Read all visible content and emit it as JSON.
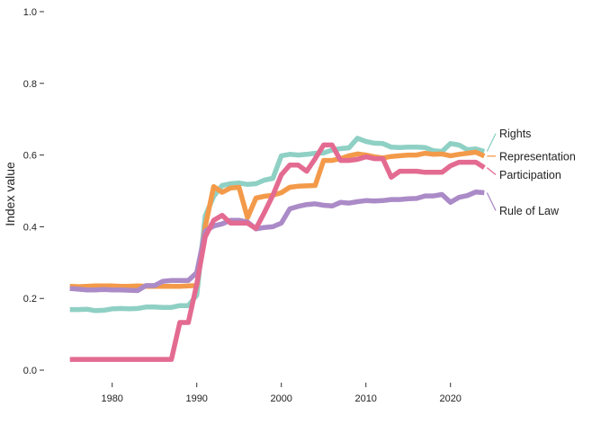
{
  "chart_data": {
    "type": "line",
    "ylabel": "Index value",
    "xlabel": "",
    "title": "",
    "xlim": [
      1974.5,
      2024.5
    ],
    "ylim": [
      -0.05,
      1.02
    ],
    "xticks": [
      1980,
      1990,
      2000,
      2010,
      2020
    ],
    "xtick_labels": [
      "1980",
      "1990",
      "2000",
      "2010",
      "2020"
    ],
    "yticks": [
      0.0,
      0.2,
      0.4,
      0.6,
      0.8,
      1.0
    ],
    "ytick_labels": [
      "0.0",
      "0.2",
      "0.4",
      "0.6",
      "0.8",
      "1.0"
    ],
    "grid": false,
    "legend": "direct labels at right end of lines",
    "series": [
      {
        "name": "Rights",
        "color": "#8fd0c4",
        "label_offset": 0.05,
        "points": [
          [
            1975,
            0.169
          ],
          [
            1976,
            0.169
          ],
          [
            1977,
            0.17
          ],
          [
            1978,
            0.166
          ],
          [
            1979,
            0.167
          ],
          [
            1980,
            0.171
          ],
          [
            1981,
            0.172
          ],
          [
            1982,
            0.171
          ],
          [
            1983,
            0.172
          ],
          [
            1984,
            0.176
          ],
          [
            1985,
            0.176
          ],
          [
            1986,
            0.175
          ],
          [
            1987,
            0.175
          ],
          [
            1988,
            0.18
          ],
          [
            1989,
            0.18
          ],
          [
            1990,
            0.209
          ],
          [
            1991,
            0.43
          ],
          [
            1992,
            0.485
          ],
          [
            1993,
            0.515
          ],
          [
            1994,
            0.52
          ],
          [
            1995,
            0.522
          ],
          [
            1996,
            0.518
          ],
          [
            1997,
            0.52
          ],
          [
            1998,
            0.53
          ],
          [
            1999,
            0.535
          ],
          [
            2000,
            0.598
          ],
          [
            2001,
            0.602
          ],
          [
            2002,
            0.6
          ],
          [
            2003,
            0.602
          ],
          [
            2004,
            0.605
          ],
          [
            2005,
            0.606
          ],
          [
            2006,
            0.614
          ],
          [
            2007,
            0.618
          ],
          [
            2008,
            0.62
          ],
          [
            2009,
            0.647
          ],
          [
            2010,
            0.638
          ],
          [
            2011,
            0.633
          ],
          [
            2012,
            0.632
          ],
          [
            2013,
            0.622
          ],
          [
            2014,
            0.621
          ],
          [
            2015,
            0.622
          ],
          [
            2016,
            0.622
          ],
          [
            2017,
            0.621
          ],
          [
            2018,
            0.612
          ],
          [
            2019,
            0.61
          ],
          [
            2020,
            0.632
          ],
          [
            2021,
            0.628
          ],
          [
            2022,
            0.615
          ],
          [
            2023,
            0.617
          ],
          [
            2024,
            0.61
          ]
        ]
      },
      {
        "name": "Representation",
        "color": "#f39a4a",
        "label_offset": 0.0,
        "points": [
          [
            1975,
            0.234
          ],
          [
            1976,
            0.233
          ],
          [
            1977,
            0.234
          ],
          [
            1978,
            0.235
          ],
          [
            1979,
            0.235
          ],
          [
            1980,
            0.235
          ],
          [
            1981,
            0.234
          ],
          [
            1982,
            0.234
          ],
          [
            1983,
            0.235
          ],
          [
            1984,
            0.234
          ],
          [
            1985,
            0.234
          ],
          [
            1986,
            0.234
          ],
          [
            1987,
            0.234
          ],
          [
            1988,
            0.234
          ],
          [
            1989,
            0.235
          ],
          [
            1990,
            0.236
          ],
          [
            1991,
            0.4
          ],
          [
            1992,
            0.512
          ],
          [
            1993,
            0.496
          ],
          [
            1994,
            0.508
          ],
          [
            1995,
            0.51
          ],
          [
            1996,
            0.425
          ],
          [
            1997,
            0.48
          ],
          [
            1998,
            0.485
          ],
          [
            1999,
            0.488
          ],
          [
            2000,
            0.495
          ],
          [
            2001,
            0.51
          ],
          [
            2002,
            0.513
          ],
          [
            2003,
            0.514
          ],
          [
            2004,
            0.515
          ],
          [
            2005,
            0.585
          ],
          [
            2006,
            0.585
          ],
          [
            2007,
            0.59
          ],
          [
            2008,
            0.598
          ],
          [
            2009,
            0.603
          ],
          [
            2010,
            0.6
          ],
          [
            2011,
            0.595
          ],
          [
            2012,
            0.592
          ],
          [
            2013,
            0.596
          ],
          [
            2014,
            0.598
          ],
          [
            2015,
            0.6
          ],
          [
            2016,
            0.6
          ],
          [
            2017,
            0.605
          ],
          [
            2018,
            0.602
          ],
          [
            2019,
            0.603
          ],
          [
            2020,
            0.598
          ],
          [
            2021,
            0.602
          ],
          [
            2022,
            0.605
          ],
          [
            2023,
            0.608
          ],
          [
            2024,
            0.597
          ]
        ]
      },
      {
        "name": "Participation",
        "color": "#e36b91",
        "label_offset": -0.02,
        "points": [
          [
            1975,
            0.03
          ],
          [
            1976,
            0.03
          ],
          [
            1977,
            0.03
          ],
          [
            1978,
            0.03
          ],
          [
            1979,
            0.03
          ],
          [
            1980,
            0.03
          ],
          [
            1981,
            0.03
          ],
          [
            1982,
            0.03
          ],
          [
            1983,
            0.03
          ],
          [
            1984,
            0.03
          ],
          [
            1985,
            0.03
          ],
          [
            1986,
            0.03
          ],
          [
            1987,
            0.03
          ],
          [
            1988,
            0.133
          ],
          [
            1989,
            0.133
          ],
          [
            1990,
            0.24
          ],
          [
            1991,
            0.372
          ],
          [
            1992,
            0.418
          ],
          [
            1993,
            0.432
          ],
          [
            1994,
            0.41
          ],
          [
            1995,
            0.41
          ],
          [
            1996,
            0.41
          ],
          [
            1997,
            0.395
          ],
          [
            1998,
            0.44
          ],
          [
            1999,
            0.488
          ],
          [
            2000,
            0.545
          ],
          [
            2001,
            0.572
          ],
          [
            2002,
            0.572
          ],
          [
            2003,
            0.555
          ],
          [
            2004,
            0.59
          ],
          [
            2005,
            0.628
          ],
          [
            2006,
            0.628
          ],
          [
            2007,
            0.585
          ],
          [
            2008,
            0.585
          ],
          [
            2009,
            0.588
          ],
          [
            2010,
            0.595
          ],
          [
            2011,
            0.59
          ],
          [
            2012,
            0.59
          ],
          [
            2013,
            0.538
          ],
          [
            2014,
            0.555
          ],
          [
            2015,
            0.555
          ],
          [
            2016,
            0.555
          ],
          [
            2017,
            0.552
          ],
          [
            2018,
            0.552
          ],
          [
            2019,
            0.552
          ],
          [
            2020,
            0.57
          ],
          [
            2021,
            0.58
          ],
          [
            2022,
            0.58
          ],
          [
            2023,
            0.58
          ],
          [
            2024,
            0.565
          ]
        ]
      },
      {
        "name": "Rule of Law",
        "color": "#ab8bc7",
        "label_offset": -0.05,
        "points": [
          [
            1975,
            0.228
          ],
          [
            1976,
            0.226
          ],
          [
            1977,
            0.224
          ],
          [
            1978,
            0.224
          ],
          [
            1979,
            0.225
          ],
          [
            1980,
            0.224
          ],
          [
            1981,
            0.224
          ],
          [
            1982,
            0.223
          ],
          [
            1983,
            0.222
          ],
          [
            1984,
            0.236
          ],
          [
            1985,
            0.236
          ],
          [
            1986,
            0.248
          ],
          [
            1987,
            0.25
          ],
          [
            1988,
            0.25
          ],
          [
            1989,
            0.25
          ],
          [
            1990,
            0.272
          ],
          [
            1991,
            0.388
          ],
          [
            1992,
            0.402
          ],
          [
            1993,
            0.408
          ],
          [
            1994,
            0.418
          ],
          [
            1995,
            0.418
          ],
          [
            1996,
            0.413
          ],
          [
            1997,
            0.394
          ],
          [
            1998,
            0.398
          ],
          [
            1999,
            0.4
          ],
          [
            2000,
            0.41
          ],
          [
            2001,
            0.45
          ],
          [
            2002,
            0.457
          ],
          [
            2003,
            0.462
          ],
          [
            2004,
            0.464
          ],
          [
            2005,
            0.46
          ],
          [
            2006,
            0.458
          ],
          [
            2007,
            0.468
          ],
          [
            2008,
            0.466
          ],
          [
            2009,
            0.47
          ],
          [
            2010,
            0.473
          ],
          [
            2011,
            0.472
          ],
          [
            2012,
            0.473
          ],
          [
            2013,
            0.476
          ],
          [
            2014,
            0.476
          ],
          [
            2015,
            0.478
          ],
          [
            2016,
            0.479
          ],
          [
            2017,
            0.486
          ],
          [
            2018,
            0.486
          ],
          [
            2019,
            0.49
          ],
          [
            2020,
            0.468
          ],
          [
            2021,
            0.482
          ],
          [
            2022,
            0.487
          ],
          [
            2023,
            0.497
          ],
          [
            2024,
            0.495
          ]
        ]
      }
    ]
  }
}
